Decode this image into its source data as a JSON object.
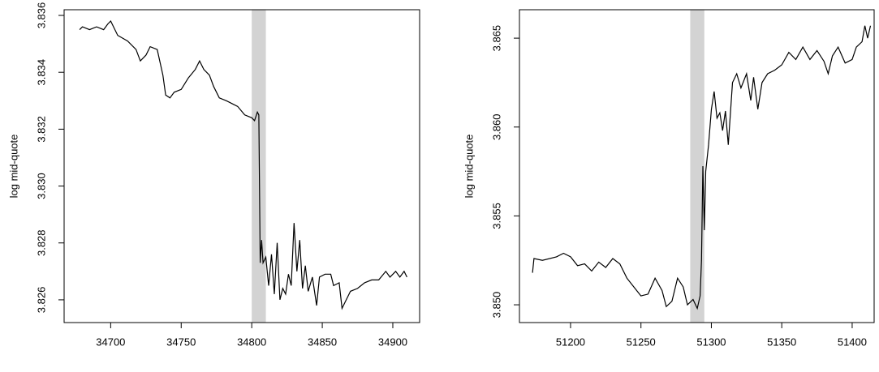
{
  "chart_data": [
    {
      "type": "line",
      "ylabel": "log mid-quote",
      "x": [
        34678,
        34680,
        34685,
        34690,
        34695,
        34698,
        34700,
        34705,
        34712,
        34718,
        34721,
        34725,
        34728,
        34733,
        34737,
        34739,
        34742,
        34745,
        34750,
        34755,
        34760,
        34763,
        34766,
        34770,
        34773,
        34777,
        34782,
        34786,
        34790,
        34795,
        34800,
        34802,
        34804,
        34805,
        34806,
        34807,
        34808,
        34810,
        34812,
        34814,
        34816,
        34818,
        34820,
        34822,
        34824,
        34826,
        34828,
        34830,
        34832,
        34834,
        34836,
        34838,
        34840,
        34843,
        34846,
        34848,
        34852,
        34856,
        34858,
        34862,
        34864,
        34866,
        34870,
        34875,
        34880,
        34885,
        34890,
        34895,
        34898,
        34902,
        34905,
        34908,
        34910
      ],
      "series": [
        {
          "color": "#000000",
          "values": [
            3.8355,
            3.8356,
            3.8355,
            3.8356,
            3.8355,
            3.8357,
            3.8358,
            3.8353,
            3.8351,
            3.8348,
            3.8344,
            3.8346,
            3.8349,
            3.8348,
            3.8339,
            3.8332,
            3.8331,
            3.8333,
            3.8334,
            3.8338,
            3.8341,
            3.8344,
            3.8341,
            3.8339,
            3.8335,
            3.8331,
            3.833,
            3.8329,
            3.8328,
            3.8325,
            3.8324,
            3.8323,
            3.8326,
            3.8325,
            3.8273,
            3.8281,
            3.8273,
            3.8275,
            3.8265,
            3.8276,
            3.8262,
            3.828,
            3.826,
            3.8264,
            3.8262,
            3.8269,
            3.8265,
            3.8287,
            3.827,
            3.8281,
            3.8264,
            3.8272,
            3.8263,
            3.8268,
            3.8258,
            3.8268,
            3.8269,
            3.8269,
            3.8265,
            3.8266,
            3.8257,
            3.8259,
            3.8263,
            3.8264,
            3.8266,
            3.8267,
            3.8267,
            3.827,
            3.8268,
            3.827,
            3.8268,
            3.827,
            3.8268
          ]
        }
      ],
      "highlight": {
        "xmin": 34800,
        "xmax": 34810,
        "color": "#d3d3d3"
      },
      "xlim": [
        34667,
        34919
      ],
      "ylim": [
        3.8252,
        3.8362
      ],
      "xticks": [
        34700,
        34750,
        34800,
        34850,
        34900
      ],
      "yticks": [
        3.826,
        3.828,
        {
          "value": 3.83,
          "label": "3.830"
        },
        3.832,
        3.834,
        3.836
      ]
    },
    {
      "type": "line",
      "ylabel": "log mid-quote",
      "x": [
        51173,
        51174,
        51180,
        51190,
        51195,
        51200,
        51205,
        51210,
        51215,
        51220,
        51225,
        51230,
        51235,
        51240,
        51245,
        51250,
        51255,
        51260,
        51265,
        51268,
        51272,
        51276,
        51280,
        51283,
        51287,
        51290,
        51292,
        51293,
        51294,
        51295,
        51296,
        51298,
        51300,
        51302,
        51304,
        51306,
        51308,
        51310,
        51312,
        51315,
        51318,
        51321,
        51325,
        51328,
        51330,
        51333,
        51336,
        51340,
        51345,
        51350,
        51355,
        51360,
        51365,
        51370,
        51375,
        51380,
        51383,
        51386,
        51390,
        51395,
        51400,
        51403,
        51407,
        51409,
        51411,
        51413
      ],
      "series": [
        {
          "color": "#000000",
          "values": [
            3.8518,
            3.8526,
            3.8525,
            3.8527,
            3.8529,
            3.8527,
            3.8522,
            3.8523,
            3.8519,
            3.8524,
            3.8521,
            3.8526,
            3.8523,
            3.8515,
            3.851,
            3.8505,
            3.8506,
            3.8515,
            3.8508,
            3.8499,
            3.8502,
            3.8515,
            3.851,
            3.85,
            3.8503,
            3.8498,
            3.8505,
            3.8525,
            3.8578,
            3.8542,
            3.8575,
            3.859,
            3.861,
            3.862,
            3.8605,
            3.8608,
            3.8598,
            3.8609,
            3.859,
            3.8625,
            3.863,
            3.8622,
            3.863,
            3.8615,
            3.8628,
            3.861,
            3.8625,
            3.863,
            3.8632,
            3.8635,
            3.8642,
            3.8638,
            3.8645,
            3.8638,
            3.8643,
            3.8637,
            3.863,
            3.864,
            3.8645,
            3.8636,
            3.8638,
            3.8645,
            3.8648,
            3.8657,
            3.865,
            3.8657
          ]
        }
      ],
      "highlight": {
        "xmin": 51285,
        "xmax": 51295,
        "color": "#d3d3d3"
      },
      "xlim": [
        51163.7,
        51415.6
      ],
      "ylim": [
        3.849,
        3.8666
      ],
      "xticks": [
        51200,
        51250,
        51300,
        51350,
        51400
      ],
      "yticks": [
        {
          "value": 3.85,
          "label": "3.850"
        },
        3.855,
        {
          "value": 3.86,
          "label": "3.860"
        },
        3.865
      ]
    }
  ]
}
